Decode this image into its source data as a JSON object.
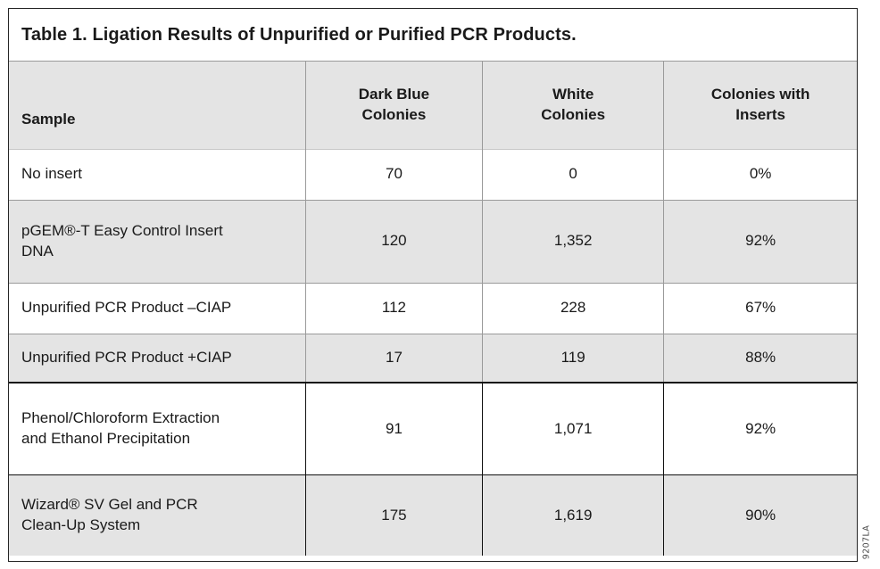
{
  "figure": {
    "title": "Table 1. Ligation Results of Unpurified or Purified PCR Products.",
    "art_number": "9207LA"
  },
  "table": {
    "columns": [
      {
        "id": "sample",
        "header_lines": [
          "Sample"
        ]
      },
      {
        "id": "dark_blue_colonies",
        "header_lines": [
          "Dark Blue",
          "Colonies"
        ]
      },
      {
        "id": "white_colonies",
        "header_lines": [
          "White",
          "Colonies"
        ]
      },
      {
        "id": "colonies_with_inserts",
        "header_lines": [
          "Colonies with",
          "Inserts"
        ]
      }
    ],
    "rows": [
      {
        "sample_lines": [
          "No insert"
        ],
        "dark_blue": "70",
        "white": "0",
        "inserts": "0%"
      },
      {
        "sample_lines": [
          "pGEM®-T Easy Control Insert",
          "DNA"
        ],
        "dark_blue": "120",
        "white": "1,352",
        "inserts": "92%"
      },
      {
        "sample_lines": [
          "Unpurified PCR Product –CIAP"
        ],
        "dark_blue": "112",
        "white": "228",
        "inserts": "67%"
      },
      {
        "sample_lines": [
          "Unpurified PCR Product +CIAP"
        ],
        "dark_blue": "17",
        "white": "119",
        "inserts": "88%"
      },
      {
        "sample_lines": [
          "Phenol/Chloroform Extraction",
          "and Ethanol Precipitation"
        ],
        "dark_blue": "91",
        "white": "1,071",
        "inserts": "92%"
      },
      {
        "sample_lines": [
          "Wizard® SV Gel and PCR",
          "Clean-Up System"
        ],
        "dark_blue": "175",
        "white": "1,619",
        "inserts": "90%"
      }
    ]
  },
  "colors": {
    "row_shade_bg": "#e4e4e4",
    "header_bg": "#e4e4e4",
    "grid_gray": "#9a9a9a",
    "grid_black": "#111111",
    "outer_border": "#262626",
    "text": "#1a1a1a",
    "art_number_text": "#4a4a4a"
  }
}
